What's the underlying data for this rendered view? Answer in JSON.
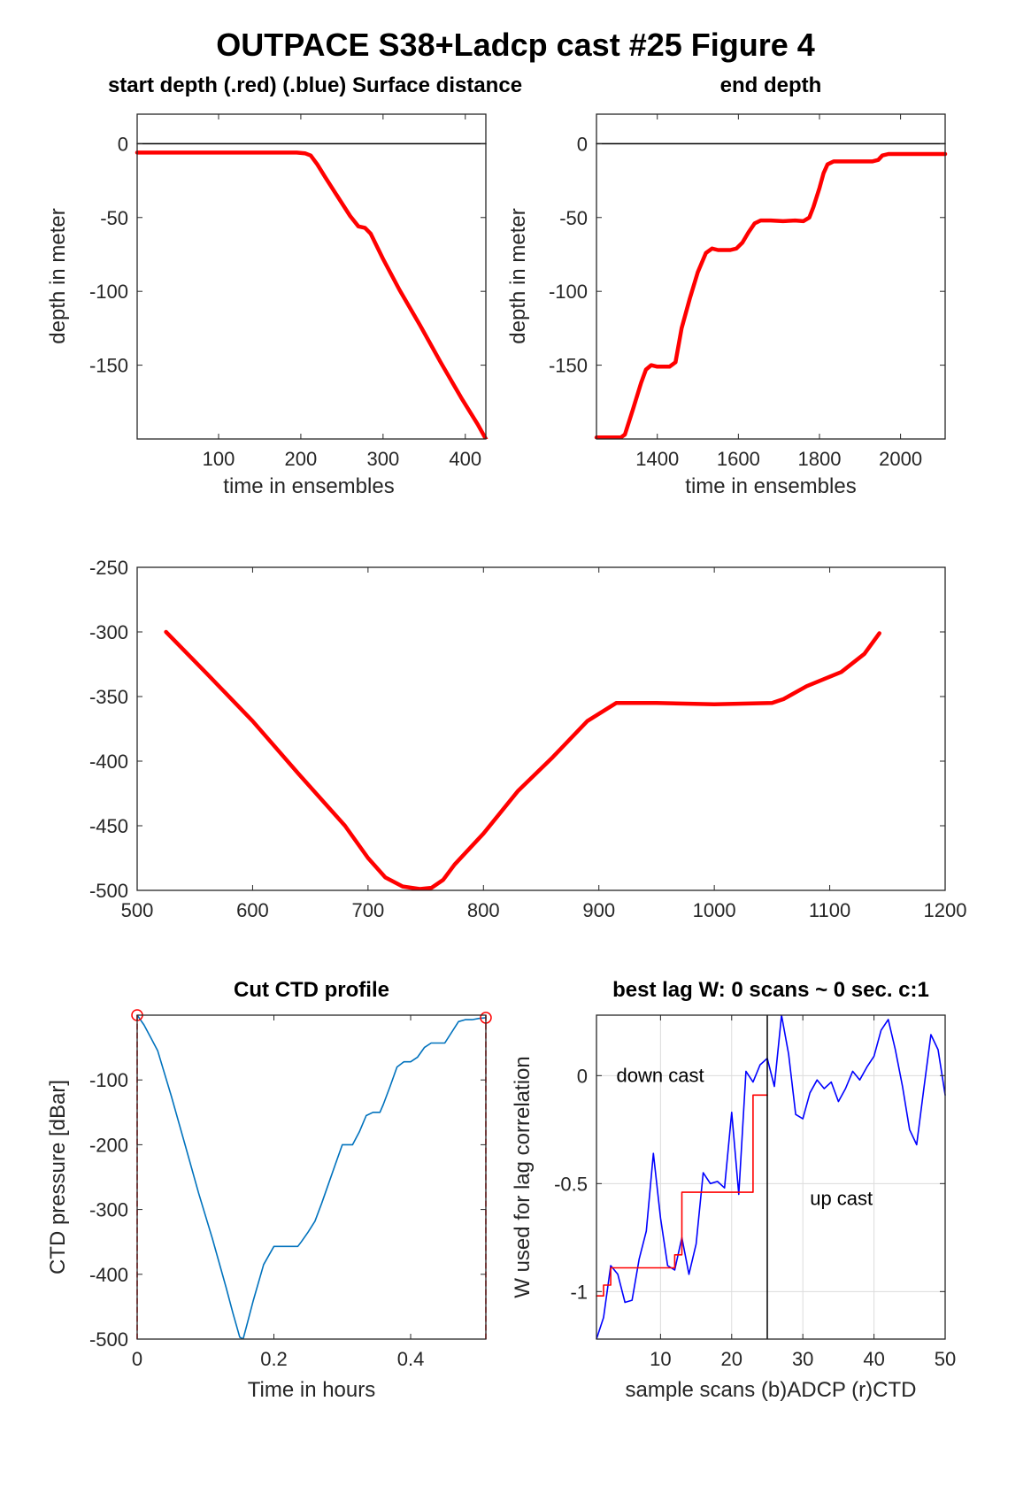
{
  "figure": {
    "title": "OUTPACE S38+Ladcp cast #25   Figure 4"
  },
  "chart_data": [
    {
      "id": "start",
      "type": "line",
      "title": "start depth (.red) (.blue) Surface distance",
      "xlabel": "time in ensembles",
      "ylabel": "depth in meter",
      "xlim": [
        1,
        425
      ],
      "ylim": [
        -200,
        20
      ],
      "xticks": [
        100,
        200,
        300,
        400
      ],
      "yticks": [
        0,
        -50,
        -100,
        -150
      ],
      "grid": false,
      "series": [
        {
          "color": "#ff0000",
          "x": [
            1,
            100,
            150,
            195,
            205,
            212,
            220,
            230,
            245,
            260,
            270,
            278,
            285,
            300,
            320,
            345,
            370,
            395,
            415,
            425
          ],
          "y": [
            -6,
            -6,
            -6,
            -6,
            -6.5,
            -8,
            -14,
            -23,
            -36,
            -49,
            -56,
            -57,
            -61,
            -78,
            -99,
            -123,
            -148,
            -172,
            -190,
            -200
          ]
        },
        {
          "color": "#000000",
          "x": [
            1,
            425
          ],
          "y": [
            0,
            0
          ]
        }
      ]
    },
    {
      "id": "end",
      "type": "line",
      "title": "end depth",
      "xlabel": "time in ensembles",
      "ylabel": "depth in meter",
      "xlim": [
        1250,
        2110
      ],
      "ylim": [
        -200,
        20
      ],
      "xticks": [
        1400,
        1600,
        1800,
        2000
      ],
      "yticks": [
        0,
        -50,
        -100,
        -150
      ],
      "grid": false,
      "series": [
        {
          "color": "#ff0000",
          "x": [
            1250,
            1310,
            1320,
            1340,
            1360,
            1372,
            1385,
            1400,
            1430,
            1445,
            1460,
            1480,
            1500,
            1520,
            1535,
            1550,
            1580,
            1595,
            1610,
            1625,
            1640,
            1655,
            1680,
            1710,
            1740,
            1760,
            1775,
            1785,
            1800,
            1810,
            1820,
            1835,
            1860,
            1900,
            1930,
            1945,
            1955,
            1970,
            2000,
            2050,
            2110
          ],
          "y": [
            -199,
            -199,
            -197,
            -180,
            -162,
            -153,
            -150,
            -151,
            -151,
            -148,
            -125,
            -105,
            -87,
            -74,
            -71,
            -72,
            -72,
            -71,
            -67,
            -60,
            -54,
            -52,
            -52,
            -52.5,
            -52,
            -52.5,
            -50,
            -43,
            -30,
            -20,
            -14,
            -12,
            -12,
            -12,
            -12,
            -11,
            -8,
            -7,
            -7,
            -7,
            -7
          ]
        },
        {
          "color": "#000000",
          "x": [
            1250,
            2110
          ],
          "y": [
            0,
            0
          ]
        }
      ]
    },
    {
      "id": "middle",
      "type": "line",
      "title": "",
      "xlabel": "",
      "ylabel": "",
      "xlim": [
        500,
        1200
      ],
      "ylim": [
        -500,
        -250
      ],
      "xticks": [
        500,
        600,
        700,
        800,
        900,
        1000,
        1100,
        1200
      ],
      "yticks": [
        -250,
        -300,
        -350,
        -400,
        -450,
        -500
      ],
      "grid": false,
      "series": [
        {
          "color": "#ff0000",
          "x": [
            525,
            560,
            600,
            640,
            680,
            700,
            715,
            730,
            745,
            755,
            765,
            775,
            800,
            830,
            860,
            890,
            915,
            950,
            1000,
            1050,
            1060,
            1080,
            1110,
            1130,
            1143
          ],
          "y": [
            -300,
            -332,
            -369,
            -410,
            -450,
            -475,
            -490,
            -497,
            -499,
            -498,
            -492,
            -480,
            -456,
            -423,
            -397,
            -369,
            -355,
            -355,
            -356,
            -355,
            -352,
            -342,
            -331,
            -317,
            -301
          ]
        }
      ]
    },
    {
      "id": "ctd",
      "type": "line",
      "title": "Cut CTD profile",
      "xlabel": "Time in hours",
      "ylabel": "CTD pressure [dBar]",
      "xlim": [
        0,
        0.51
      ],
      "ylim": [
        -500,
        0
      ],
      "xticks": [
        0,
        0.2,
        0.4
      ],
      "yticks": [
        -100,
        -200,
        -300,
        -400,
        -500
      ],
      "grid": false,
      "series": [
        {
          "color": "#0072bd",
          "x": [
            0,
            0.01,
            0.02,
            0.03,
            0.05,
            0.07,
            0.09,
            0.11,
            0.13,
            0.14,
            0.15,
            0.155,
            0.16,
            0.17,
            0.185,
            0.2,
            0.22,
            0.235,
            0.24,
            0.25,
            0.26,
            0.27,
            0.28,
            0.29,
            0.3,
            0.31,
            0.315,
            0.325,
            0.335,
            0.345,
            0.355,
            0.36,
            0.37,
            0.38,
            0.39,
            0.4,
            0.41,
            0.42,
            0.43,
            0.44,
            0.45,
            0.47,
            0.48,
            0.49,
            0.5,
            0.51
          ],
          "y": [
            0,
            -15,
            -35,
            -55,
            -125,
            -200,
            -275,
            -345,
            -420,
            -460,
            -497,
            -500,
            -480,
            -440,
            -385,
            -357,
            -357,
            -357,
            -350,
            -335,
            -318,
            -290,
            -260,
            -230,
            -200,
            -200,
            -200,
            -180,
            -155,
            -150,
            -150,
            -138,
            -110,
            -80,
            -72,
            -72,
            -65,
            -50,
            -43,
            -43,
            -43,
            -10,
            -7,
            -7,
            -5,
            -4
          ]
        },
        {
          "color": "#ff0000",
          "x": [
            0,
            0
          ],
          "y": [
            0,
            -500
          ]
        },
        {
          "color": "#ff0000",
          "x": [
            0.51,
            0.51
          ],
          "y": [
            0,
            -500
          ]
        }
      ]
    },
    {
      "id": "lag",
      "type": "line",
      "title": "best lag W: 0 scans ~ 0 sec.  c:1",
      "xlabel": "sample scans (b)ADCP (r)CTD",
      "ylabel": "W used for lag correlation",
      "xlim": [
        1,
        50
      ],
      "ylim": [
        -1.22,
        0.28
      ],
      "xticks": [
        10,
        20,
        30,
        40,
        50
      ],
      "yticks": [
        0,
        -0.5,
        -1
      ],
      "grid": true,
      "annotations": [
        {
          "text": "down cast",
          "x": 3.8,
          "y": -0.03
        },
        {
          "text": "up cast",
          "x": 31,
          "y": -0.6
        }
      ],
      "series": [
        {
          "name": "(b)ADCP",
          "color": "#0000ff",
          "x": [
            1,
            2,
            3,
            4,
            5,
            6,
            7,
            8,
            9,
            10,
            11,
            12,
            13,
            14,
            15,
            16,
            17,
            18,
            19,
            20,
            21,
            22,
            23,
            24,
            25,
            26,
            27,
            28,
            29,
            30,
            31,
            32,
            33,
            34,
            35,
            36,
            37,
            38,
            39,
            40,
            41,
            42,
            43,
            44,
            45,
            46,
            47,
            48,
            49,
            50
          ],
          "y": [
            -1.22,
            -1.12,
            -0.88,
            -0.92,
            -1.05,
            -1.04,
            -0.85,
            -0.72,
            -0.36,
            -0.66,
            -0.88,
            -0.9,
            -0.75,
            -0.92,
            -0.78,
            -0.45,
            -0.5,
            -0.49,
            -0.52,
            -0.17,
            -0.55,
            0.02,
            -0.03,
            0.05,
            0.08,
            -0.05,
            0.28,
            0.1,
            -0.18,
            -0.2,
            -0.08,
            -0.02,
            -0.06,
            -0.03,
            -0.12,
            -0.06,
            0.02,
            -0.02,
            0.04,
            0.09,
            0.21,
            0.26,
            0.12,
            -0.05,
            -0.25,
            -0.32,
            -0.06,
            0.19,
            0.12,
            -0.09
          ]
        },
        {
          "name": "(r)CTD",
          "color": "#ff0000",
          "x": [
            1,
            2,
            2,
            3,
            3,
            12,
            12,
            13,
            13,
            22,
            22,
            23,
            23,
            25,
            25
          ],
          "y": [
            -1.02,
            -1.02,
            -0.97,
            -0.97,
            -0.89,
            -0.89,
            -0.83,
            -0.83,
            -0.54,
            -0.54,
            -0.54,
            -0.54,
            -0.09,
            -0.09,
            -0.09
          ]
        },
        {
          "color": "#000000",
          "x": [
            25,
            25
          ],
          "y": [
            -1.22,
            0.28
          ]
        }
      ]
    }
  ]
}
